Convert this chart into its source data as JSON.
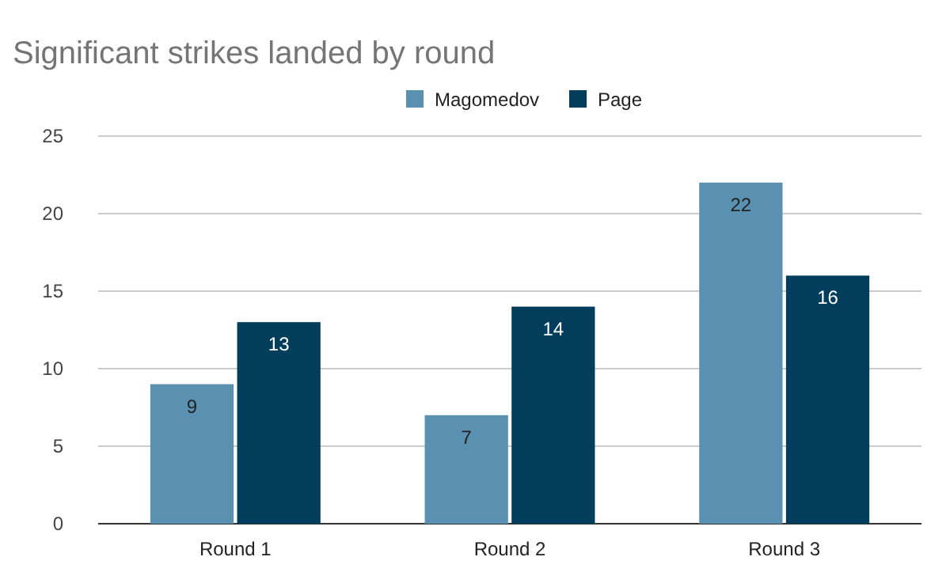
{
  "chart_data": {
    "type": "bar",
    "title": "Significant strikes landed by round",
    "categories": [
      "Round 1",
      "Round 2",
      "Round 3"
    ],
    "series": [
      {
        "name": "Magomedov",
        "color": "#5b91b0",
        "values": [
          9,
          7,
          22
        ]
      },
      {
        "name": "Page",
        "color": "#023e5c",
        "values": [
          13,
          14,
          16
        ]
      }
    ],
    "ylim": [
      0,
      25
    ],
    "yticks": [
      0,
      5,
      10,
      15,
      20,
      25
    ],
    "grid": "y",
    "legend": "top",
    "data_labels": true
  }
}
